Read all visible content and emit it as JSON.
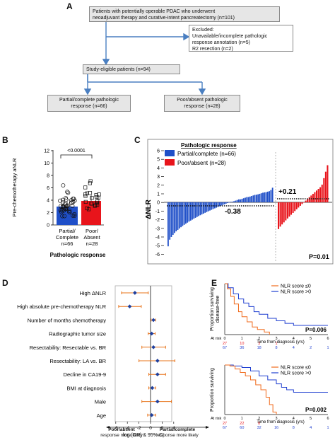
{
  "panel_a": {
    "letter": "A",
    "top_box": [
      "Patients with potentially operable PDAC who underwent",
      "neoadjuvant therapy and curative-intent pancreatectomy (n=101)"
    ],
    "excluded_box": [
      "Excluded:",
      "  Unavailable/incomplete pathologic",
      "  response annotation (n=5)",
      "  R2 resection (n=2)"
    ],
    "eligible_box": "Study-eligible patients (n=94)",
    "partial_box": [
      "Partial/complete pathologic",
      "response (n=66)"
    ],
    "poor_box": [
      "Poor/absent pathologic",
      "response (n=28)"
    ],
    "colors": {
      "box_fill": "#e6e6e6",
      "arrow": "#4a7fc1"
    }
  },
  "panel_b": {
    "letter": "B",
    "pvalue": "<0.0001",
    "ylabel": "Pre-chemotherapy aNLR",
    "xtitle": "Pathologic response",
    "ticks": [
      "0",
      "2",
      "4",
      "6",
      "8",
      "10",
      "12"
    ],
    "group1": [
      "Partial/",
      "Complete",
      "n=66"
    ],
    "group2": [
      "Poor/",
      "Absent",
      "n=28"
    ],
    "colors": {
      "blue": "#1f4fc8",
      "red": "#e8141b"
    }
  },
  "panel_c": {
    "letter": "C",
    "legend_title": "Pathologic response",
    "legend": [
      "Partial/complete (n=66)",
      "Poor/absent (n=28)"
    ],
    "ylabel": "ΔNLR",
    "ticks": [
      "6",
      "5",
      "4",
      "3",
      "2",
      "1",
      "0",
      "-1",
      "-2",
      "-3",
      "-4",
      "-5",
      "-6"
    ],
    "mean_blue": "-0.38",
    "mean_red": "+0.21",
    "pvalue": "P=0.01"
  },
  "panel_d": {
    "letter": "D",
    "rows": [
      "High ΔNLR",
      "High absolute pre-chemotherapy NLR",
      "Number of months chemotherapy",
      "Radiographic tumor size",
      "Resectability: Resectable vs. BR",
      "Resectability: LA vs. BR",
      "Decline in CA19-9",
      "BMI at diagnosis",
      "Male",
      "Age"
    ],
    "ticks": [
      "-6",
      "-4",
      "-2",
      "0",
      "2",
      "4"
    ],
    "xlabel": "log (OR) & 95% CI",
    "left_caption": [
      "Poor/absent",
      "response more likely"
    ],
    "right_caption": [
      "Partial/complete",
      "response more likely"
    ]
  },
  "panel_e": {
    "letter": "E",
    "top": {
      "ylabel": [
        "Proportion surviving",
        "disease-free"
      ],
      "legend": [
        "NLR score ≤0",
        "NLR score >0"
      ],
      "pvalue": "P=0.006",
      "at_risk": "At risk",
      "xlabel": "Time from diagnosis (yrs)",
      "ticks": [
        "0",
        "1",
        "2",
        "3",
        "4",
        "5",
        "6"
      ],
      "risk_red": [
        "27",
        "10",
        "3",
        "1",
        "",
        "",
        ""
      ],
      "risk_blue": [
        "67",
        "36",
        "18",
        "8",
        "4",
        "2",
        "1"
      ]
    },
    "bottom": {
      "ylabel": [
        "Proportion surviving"
      ],
      "legend": [
        "NLR score ≤0",
        "NLR score >0"
      ],
      "pvalue": "P=0.002",
      "at_risk": "At risk",
      "xlabel": "Time from diagnosis (yrs)",
      "ticks": [
        "0",
        "1",
        "2",
        "3",
        "4",
        "5",
        "6"
      ],
      "risk_red": [
        "27",
        "22",
        "8",
        "",
        "",
        "",
        ""
      ],
      "risk_blue": [
        "67",
        "60",
        "32",
        "16",
        "8",
        "4",
        "1"
      ]
    }
  }
}
